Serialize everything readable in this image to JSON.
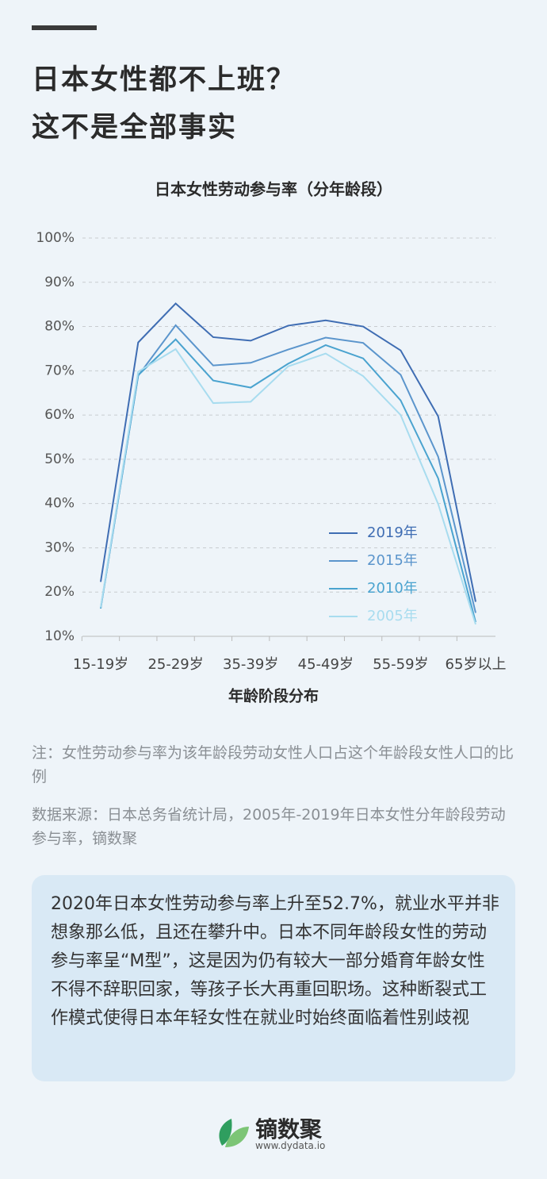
{
  "header": {
    "title": [
      "日本女性都不上班？",
      "这不是全部事实"
    ]
  },
  "chart_data": {
    "type": "line",
    "title": "日本女性劳动参与率（分年龄段）",
    "x_label": "年龄阶段分布",
    "categories": [
      "15-19岁",
      null,
      "25-29岁",
      null,
      "35-39岁",
      null,
      "45-49岁",
      null,
      "55-59岁",
      null,
      "65岁以上"
    ],
    "series": [
      {
        "name": "2019年",
        "color": "#3f6db3",
        "values": [
          22.3,
          76.4,
          85.2,
          77.6,
          76.8,
          80.2,
          81.4,
          80.0,
          74.6,
          59.7,
          17.8
        ]
      },
      {
        "name": "2015年",
        "color": "#5b95cc",
        "values": [
          16.3,
          68.9,
          80.3,
          71.2,
          71.8,
          74.8,
          77.5,
          76.3,
          69.1,
          50.6,
          15.3
        ]
      },
      {
        "name": "2010年",
        "color": "#4aa3cf",
        "values": [
          16.3,
          69.0,
          77.1,
          67.8,
          66.2,
          71.6,
          75.8,
          72.8,
          63.3,
          45.7,
          13.2
        ]
      },
      {
        "name": "2005年",
        "color": "#a8dcef",
        "values": [
          16.5,
          69.8,
          74.9,
          62.7,
          63.0,
          71.0,
          73.9,
          68.8,
          60.0,
          39.9,
          12.7
        ]
      }
    ],
    "ylim": [
      10,
      100
    ],
    "yticks": [
      {
        "value": 10,
        "label": "10%"
      },
      {
        "value": 20,
        "label": "20%"
      },
      {
        "value": 30,
        "label": "30%"
      },
      {
        "value": 40,
        "label": "40%"
      },
      {
        "value": 50,
        "label": "50%"
      },
      {
        "value": 60,
        "label": "60%"
      },
      {
        "value": 70,
        "label": "70%"
      },
      {
        "value": 80,
        "label": "80%"
      },
      {
        "value": 90,
        "label": "90%"
      },
      {
        "value": 100,
        "label": "100%"
      }
    ],
    "grid": true,
    "legend_position": "lower right"
  },
  "note": "注：女性劳动参与率为该年龄段劳动女性人口占这个年龄段女性人口的比例",
  "source": "数据来源：日本总务省统计局，2005年-2019年日本女性分年龄段劳动参与率，镝数聚",
  "summary": "2020年日本女性劳动参与率上升至52.7%，就业水平并非想象那么低，且还在攀升中。日本不同年龄段女性的劳动参与率呈“M型”，这是因为仍有较大一部分婚育年龄女性不得不辞职回家，等孩子长大再重回职场。这种断裂式工作模式使得日本年轻女性在就业时始终面临着性别歧视",
  "footer": {
    "brand": "镝数聚",
    "url": "www.dydata.io"
  }
}
